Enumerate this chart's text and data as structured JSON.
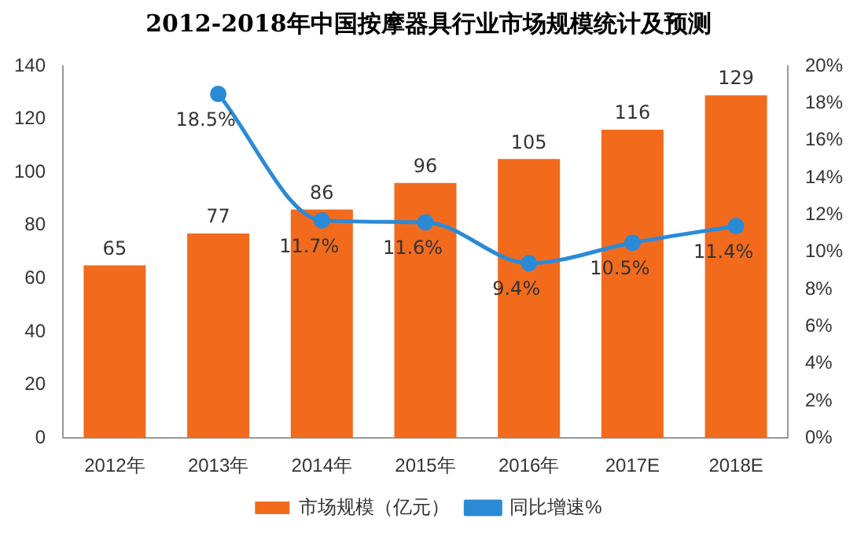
{
  "chart_data": {
    "type": "bar",
    "title": "2012-2018年中国按摩器具行业市场规模统计及预测",
    "categories": [
      "2012年",
      "2013年",
      "2014年",
      "2015年",
      "2016年",
      "2017E",
      "2018E"
    ],
    "series": [
      {
        "name": "市场规模（亿元）",
        "color": "#f26b1d",
        "values": [
          65,
          77,
          86,
          96,
          105,
          116,
          129
        ],
        "value_labels": [
          "65",
          "77",
          "86",
          "96",
          "105",
          "116",
          "129"
        ]
      },
      {
        "name": "同比增速%",
        "type": "line",
        "axis": "y2",
        "color": "#2b8ad6",
        "values": [
          null,
          18.5,
          11.7,
          11.6,
          9.4,
          10.5,
          11.4
        ],
        "value_labels": [
          null,
          "18.5%",
          "11.7%",
          "11.6%",
          "9.4%",
          "10.5%",
          "11.4%"
        ]
      }
    ],
    "ylim": [
      0,
      140
    ],
    "yticks": [
      0,
      20,
      40,
      60,
      80,
      100,
      120,
      140
    ],
    "y2lim": [
      0,
      20
    ],
    "y2ticks": [
      {
        "value": 0,
        "label": "0%"
      },
      {
        "value": 2,
        "label": "2%"
      },
      {
        "value": 4,
        "label": "4%"
      },
      {
        "value": 6,
        "label": "6%"
      },
      {
        "value": 8,
        "label": "8%"
      },
      {
        "value": 10,
        "label": "10%"
      },
      {
        "value": 12,
        "label": "12%"
      },
      {
        "value": 14,
        "label": "14%"
      },
      {
        "value": 16,
        "label": "16%"
      },
      {
        "value": 18,
        "label": "18%"
      },
      {
        "value": 20,
        "label": "20%"
      }
    ],
    "grid": false,
    "legend": "bottom",
    "marker": "circle"
  }
}
